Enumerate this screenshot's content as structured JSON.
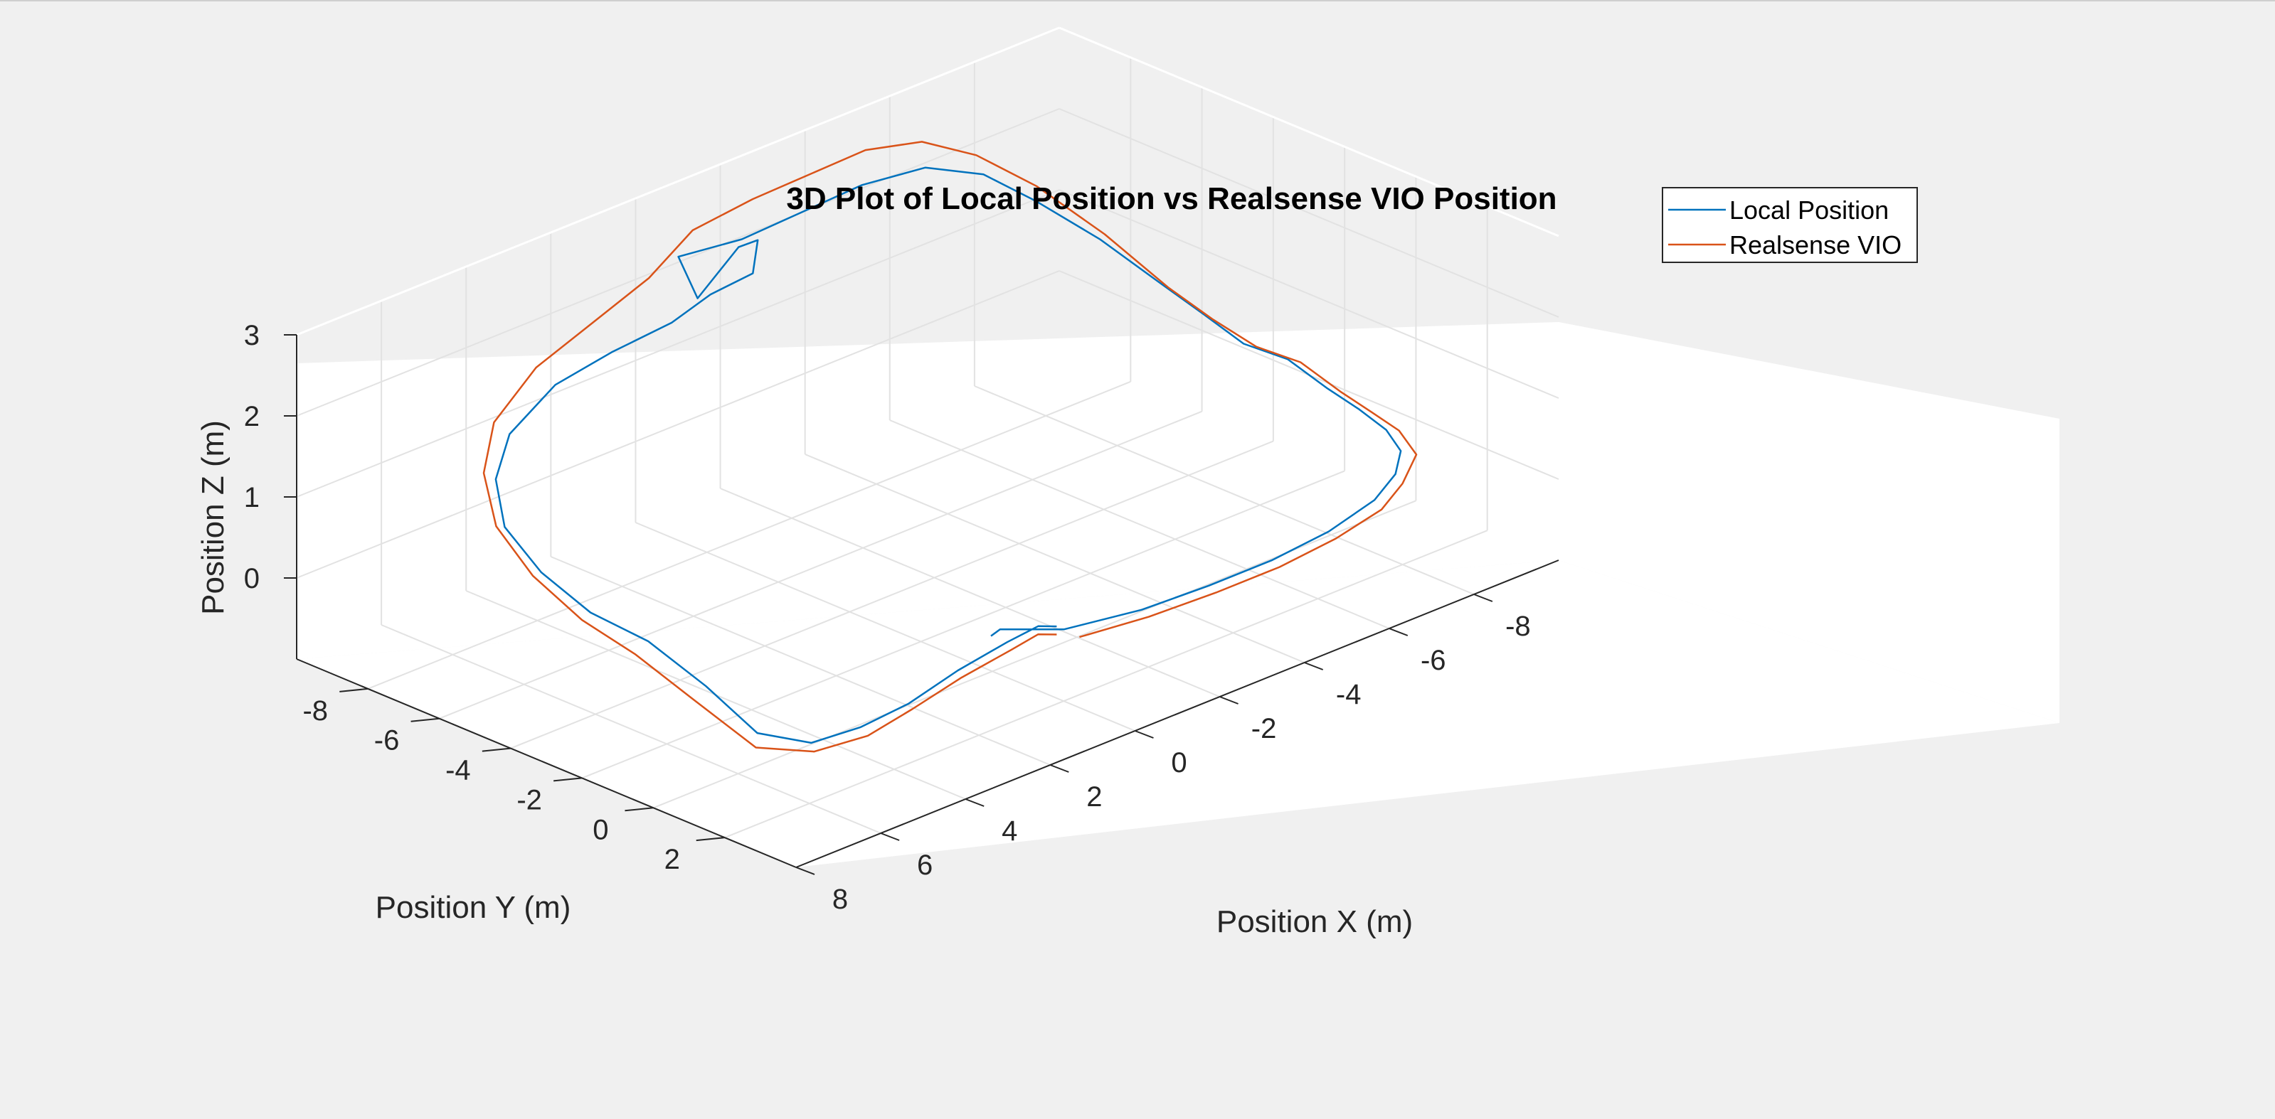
{
  "chart_data": {
    "type": "line",
    "dimensions": 3,
    "title": "3D Plot of Local Position vs Realsense VIO Position",
    "xlabel": "Position X (m)",
    "ylabel": "Position Y (m)",
    "zlabel": "Position Z (m)",
    "xlim": [
      -10,
      8
    ],
    "ylim": [
      -10,
      4
    ],
    "zlim": [
      -1,
      3
    ],
    "x_ticks": [
      "-8",
      "-6",
      "-4",
      "-2",
      "0",
      "2",
      "4",
      "6",
      "8"
    ],
    "y_ticks": [
      "-8",
      "-6",
      "-4",
      "-2",
      "0",
      "2"
    ],
    "z_ticks": [
      "0",
      "1",
      "2",
      "3"
    ],
    "grid": true,
    "box": true,
    "legend_position": "top-right",
    "colors": {
      "local": "#0072BD",
      "vio": "#D95319"
    },
    "series": [
      {
        "name": "Local Position",
        "color": "#0072BD",
        "points": [
          [
            0.5,
            2.4,
            0.1
          ],
          [
            0.6,
            2.0,
            0.05
          ],
          [
            1.5,
            2.2,
            0.08
          ],
          [
            3.0,
            2.6,
            0.12
          ],
          [
            4.5,
            3.0,
            0.1
          ],
          [
            5.8,
            3.2,
            0.12
          ],
          [
            6.8,
            3.0,
            0.1
          ],
          [
            7.4,
            2.2,
            0.2
          ],
          [
            7.6,
            1.0,
            0.6
          ],
          [
            7.7,
            -0.5,
            0.9
          ],
          [
            7.8,
            -2.0,
            1.0
          ],
          [
            7.7,
            -3.5,
            1.2
          ],
          [
            7.3,
            -5.0,
            1.4
          ],
          [
            6.5,
            -6.2,
            1.6
          ],
          [
            5.5,
            -7.0,
            1.8
          ],
          [
            4.0,
            -7.5,
            2.0
          ],
          [
            2.5,
            -7.7,
            2.05
          ],
          [
            1.0,
            -7.8,
            2.08
          ],
          [
            0.0,
            -7.9,
            2.2
          ],
          [
            -1.0,
            -7.9,
            2.25
          ],
          [
            -1.2,
            -8.0,
            2.6
          ],
          [
            -1.0,
            -8.3,
            2.5
          ],
          [
            -0.2,
            -8.5,
            2.0
          ],
          [
            0.0,
            -8.8,
            2.5
          ],
          [
            -1.5,
            -8.8,
            2.4
          ],
          [
            -3.0,
            -8.9,
            2.4
          ],
          [
            -4.5,
            -9.0,
            2.4
          ],
          [
            -6.0,
            -9.0,
            2.3
          ],
          [
            -7.2,
            -8.8,
            2.0
          ],
          [
            -8.0,
            -8.3,
            1.6
          ],
          [
            -8.6,
            -7.2,
            1.2
          ],
          [
            -9.0,
            -6.0,
            0.8
          ],
          [
            -9.2,
            -5.0,
            0.55
          ],
          [
            -9.3,
            -4.0,
            0.35
          ],
          [
            -9.5,
            -3.0,
            0.3
          ],
          [
            -9.6,
            -2.0,
            0.1
          ],
          [
            -9.5,
            -1.0,
            0.05
          ],
          [
            -9.3,
            0.0,
            0.02
          ],
          [
            -8.8,
            1.0,
            0.05
          ],
          [
            -8.0,
            1.8,
            0.08
          ],
          [
            -7.0,
            2.4,
            0.08
          ],
          [
            -5.5,
            2.9,
            0.1
          ],
          [
            -4.0,
            3.1,
            0.1
          ],
          [
            -2.5,
            3.1,
            0.1
          ],
          [
            -1.0,
            3.0,
            0.1
          ],
          [
            0.5,
            2.6,
            0.1
          ],
          [
            1.5,
            2.0,
            0.2
          ],
          [
            1.8,
            2.1,
            0.2
          ]
        ]
      },
      {
        "name": "Realsense VIO",
        "color": "#D95319",
        "points": [
          [
            0.5,
            2.4,
            0.0
          ],
          [
            0.6,
            2.0,
            -0.05
          ],
          [
            1.5,
            2.3,
            0.0
          ],
          [
            3.0,
            2.7,
            0.05
          ],
          [
            4.5,
            3.1,
            0.05
          ],
          [
            5.8,
            3.4,
            0.05
          ],
          [
            6.9,
            3.2,
            0.05
          ],
          [
            7.6,
            2.4,
            0.1
          ],
          [
            7.9,
            1.0,
            0.5
          ],
          [
            8.0,
            -0.5,
            0.8
          ],
          [
            8.0,
            -2.0,
            0.95
          ],
          [
            7.9,
            -3.5,
            1.2
          ],
          [
            7.5,
            -5.0,
            1.45
          ],
          [
            6.7,
            -6.3,
            1.7
          ],
          [
            5.7,
            -7.2,
            1.95
          ],
          [
            4.2,
            -7.8,
            2.2
          ],
          [
            2.7,
            -8.0,
            2.4
          ],
          [
            1.2,
            -8.2,
            2.6
          ],
          [
            0.0,
            -8.4,
            2.9
          ],
          [
            -1.5,
            -8.5,
            2.95
          ],
          [
            -3.0,
            -8.7,
            2.9
          ],
          [
            -4.5,
            -8.9,
            2.85
          ],
          [
            -6.0,
            -9.1,
            2.6
          ],
          [
            -7.2,
            -9.0,
            2.2
          ],
          [
            -8.2,
            -8.5,
            1.7
          ],
          [
            -8.8,
            -7.3,
            1.2
          ],
          [
            -9.2,
            -6.0,
            0.7
          ],
          [
            -9.4,
            -5.0,
            0.45
          ],
          [
            -9.6,
            -4.0,
            0.25
          ],
          [
            -9.8,
            -3.0,
            0.2
          ],
          [
            -9.9,
            -2.0,
            0.0
          ],
          [
            -9.8,
            -1.0,
            -0.05
          ],
          [
            -9.6,
            0.0,
            -0.05
          ],
          [
            -9.0,
            1.2,
            0.0
          ],
          [
            -8.0,
            2.0,
            0.0
          ],
          [
            -7.0,
            2.6,
            0.0
          ],
          [
            -5.5,
            3.1,
            0.05
          ],
          [
            -4.0,
            3.3,
            0.05
          ],
          [
            -2.5,
            3.3,
            0.05
          ],
          [
            -1.0,
            3.2,
            0.05
          ],
          [
            0.3,
            2.8,
            0.0
          ]
        ]
      }
    ]
  }
}
